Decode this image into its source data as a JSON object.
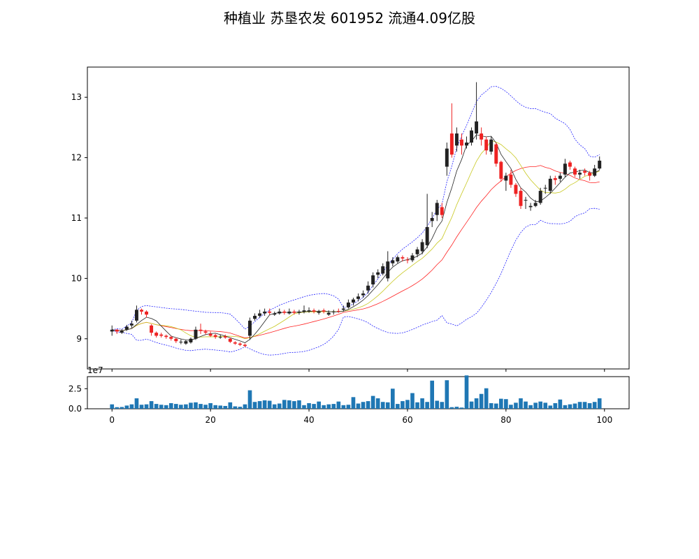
{
  "chart_data": {
    "type": "candlestick",
    "title": "种植业 苏垦农发 601952 流通4.09亿股",
    "price_panel": {
      "ylim": [
        8.5,
        13.5
      ],
      "yticks": [
        "9",
        "10",
        "11",
        "12",
        "13"
      ],
      "ytick_values": [
        9,
        10,
        11,
        12,
        13
      ]
    },
    "volume_panel": {
      "ylim": [
        0,
        4.0
      ],
      "yticks": [
        "0.0",
        "2.5"
      ],
      "ytick_values": [
        0,
        2.5
      ],
      "scale_label": "1e7"
    },
    "xlim": [
      -5,
      105
    ],
    "xticks": [
      "0",
      "20",
      "40",
      "60",
      "80",
      "100"
    ],
    "xtick_values": [
      0,
      20,
      40,
      60,
      80,
      100
    ],
    "colors": {
      "up": "#222222",
      "down": "#ee2222",
      "volume": "#1f77b4",
      "ma_short": "#222222",
      "ma_mid": "#c8c820",
      "ma_long": "#ff2222",
      "boll": "#2222ff"
    },
    "close": [
      9.15,
      9.12,
      9.13,
      9.2,
      9.25,
      9.48,
      9.45,
      9.4,
      9.1,
      9.05,
      9.05,
      9.03,
      9.0,
      8.96,
      8.95,
      8.96,
      9.0,
      9.15,
      9.13,
      9.1,
      9.05,
      9.03,
      9.03,
      9.02,
      8.95,
      8.92,
      8.9,
      8.88,
      9.3,
      9.38,
      9.42,
      9.45,
      9.43,
      9.42,
      9.45,
      9.43,
      9.45,
      9.43,
      9.45,
      9.47,
      9.47,
      9.45,
      9.45,
      9.45,
      9.43,
      9.45,
      9.45,
      9.5,
      9.6,
      9.65,
      9.7,
      9.75,
      9.88,
      10.05,
      10.1,
      10.2,
      10.28,
      10.3,
      10.35,
      10.33,
      10.3,
      10.38,
      10.48,
      10.6,
      10.85,
      11.0,
      11.25,
      11.05,
      12.15,
      12.05,
      12.4,
      12.2,
      12.25,
      12.45,
      12.6,
      12.3,
      12.12,
      12.3,
      11.9,
      11.65,
      11.7,
      11.55,
      11.4,
      11.2,
      11.3,
      11.2,
      11.25,
      11.45,
      11.5,
      11.65,
      11.63,
      11.7,
      11.9,
      11.85,
      11.72,
      11.75,
      11.75,
      11.7,
      11.82,
      11.95
    ],
    "open": [
      9.12,
      9.15,
      9.1,
      9.15,
      9.22,
      9.3,
      9.48,
      9.45,
      9.22,
      9.1,
      9.07,
      9.05,
      9.03,
      9.0,
      8.95,
      8.92,
      8.94,
      9.0,
      9.15,
      9.12,
      9.08,
      9.06,
      9.03,
      9.04,
      9.0,
      8.94,
      8.92,
      8.9,
      9.05,
      9.33,
      9.38,
      9.42,
      9.45,
      9.4,
      9.42,
      9.45,
      9.42,
      9.45,
      9.43,
      9.45,
      9.45,
      9.47,
      9.43,
      9.47,
      9.4,
      9.44,
      9.46,
      9.48,
      9.52,
      9.6,
      9.66,
      9.72,
      9.8,
      9.9,
      10.06,
      10.08,
      10.0,
      10.25,
      10.28,
      10.35,
      10.31,
      10.3,
      10.4,
      10.45,
      10.55,
      10.95,
      11.05,
      11.18,
      11.85,
      12.4,
      12.2,
      12.3,
      12.2,
      12.25,
      12.4,
      12.4,
      12.3,
      12.1,
      12.22,
      11.93,
      11.62,
      11.72,
      11.55,
      11.45,
      11.3,
      11.18,
      11.2,
      11.25,
      11.5,
      11.45,
      11.66,
      11.65,
      11.72,
      11.92,
      11.82,
      11.72,
      11.78,
      11.75,
      11.7,
      11.82
    ],
    "high": [
      9.22,
      9.16,
      9.16,
      9.23,
      9.3,
      9.55,
      9.5,
      9.47,
      9.24,
      9.12,
      9.1,
      9.07,
      9.05,
      9.02,
      8.99,
      8.98,
      9.02,
      9.2,
      9.25,
      9.15,
      9.12,
      9.08,
      9.07,
      9.07,
      9.02,
      8.96,
      8.94,
      8.92,
      9.35,
      9.42,
      9.48,
      9.5,
      9.5,
      9.45,
      9.5,
      9.48,
      9.5,
      9.48,
      9.48,
      9.55,
      9.52,
      9.5,
      9.48,
      9.5,
      9.47,
      9.48,
      9.5,
      9.55,
      9.65,
      9.68,
      9.75,
      9.8,
      9.95,
      10.1,
      10.15,
      10.25,
      10.45,
      10.35,
      10.38,
      10.38,
      10.35,
      10.42,
      10.52,
      10.65,
      11.4,
      11.1,
      11.3,
      11.25,
      12.25,
      12.9,
      12.5,
      12.4,
      12.35,
      12.5,
      13.25,
      12.5,
      12.35,
      12.35,
      12.25,
      11.95,
      11.75,
      11.8,
      11.58,
      11.5,
      11.35,
      11.25,
      11.3,
      11.5,
      11.55,
      11.7,
      11.7,
      11.75,
      11.98,
      11.95,
      11.85,
      11.8,
      11.82,
      11.78,
      11.88,
      12.02
    ],
    "low": [
      9.05,
      9.08,
      9.08,
      9.13,
      9.18,
      9.27,
      9.4,
      9.35,
      9.05,
      9.02,
      9.02,
      9.0,
      8.97,
      8.93,
      8.91,
      8.9,
      8.92,
      8.98,
      9.08,
      9.07,
      9.03,
      9.0,
      9.0,
      9.0,
      8.93,
      8.9,
      8.88,
      8.86,
      8.98,
      9.3,
      9.35,
      9.38,
      9.4,
      9.38,
      9.4,
      9.4,
      9.4,
      9.4,
      9.4,
      9.42,
      9.43,
      9.42,
      9.4,
      9.42,
      9.38,
      9.4,
      9.43,
      9.45,
      9.5,
      9.55,
      9.62,
      9.68,
      9.75,
      9.85,
      10.0,
      10.05,
      9.95,
      10.2,
      10.25,
      10.28,
      10.25,
      10.27,
      10.35,
      10.4,
      10.5,
      10.85,
      10.95,
      11.0,
      11.7,
      12.0,
      12.1,
      12.05,
      12.15,
      12.2,
      12.3,
      12.2,
      12.05,
      12.05,
      11.85,
      11.6,
      11.45,
      11.5,
      11.35,
      11.15,
      11.15,
      11.12,
      11.18,
      11.22,
      11.4,
      11.4,
      11.55,
      11.6,
      11.68,
      11.8,
      11.68,
      11.65,
      11.7,
      11.62,
      11.68,
      11.8
    ],
    "volume": [
      0.55,
      0.2,
      0.22,
      0.4,
      0.55,
      1.3,
      0.5,
      0.55,
      0.95,
      0.6,
      0.5,
      0.45,
      0.7,
      0.6,
      0.5,
      0.55,
      0.75,
      0.8,
      0.6,
      0.5,
      0.7,
      0.45,
      0.4,
      0.35,
      0.8,
      0.3,
      0.25,
      0.55,
      2.3,
      0.85,
      0.95,
      1.05,
      1.0,
      0.55,
      0.65,
      1.1,
      1.05,
      0.95,
      1.05,
      0.45,
      0.7,
      0.6,
      0.9,
      0.45,
      0.55,
      0.6,
      0.9,
      0.45,
      0.5,
      1.45,
      0.65,
      0.85,
      0.95,
      1.6,
      1.3,
      0.85,
      0.8,
      2.5,
      0.6,
      0.95,
      1.1,
      1.95,
      0.8,
      1.3,
      0.85,
      3.5,
      1.0,
      0.85,
      3.55,
      0.2,
      0.25,
      0.15,
      4.15,
      0.9,
      1.3,
      1.85,
      2.55,
      0.7,
      0.65,
      1.25,
      1.2,
      0.5,
      0.75,
      1.3,
      0.9,
      0.45,
      0.75,
      0.9,
      0.75,
      0.4,
      0.7,
      1.15,
      0.45,
      0.55,
      0.65,
      0.85,
      0.85,
      0.7,
      0.85,
      1.3
    ]
  }
}
